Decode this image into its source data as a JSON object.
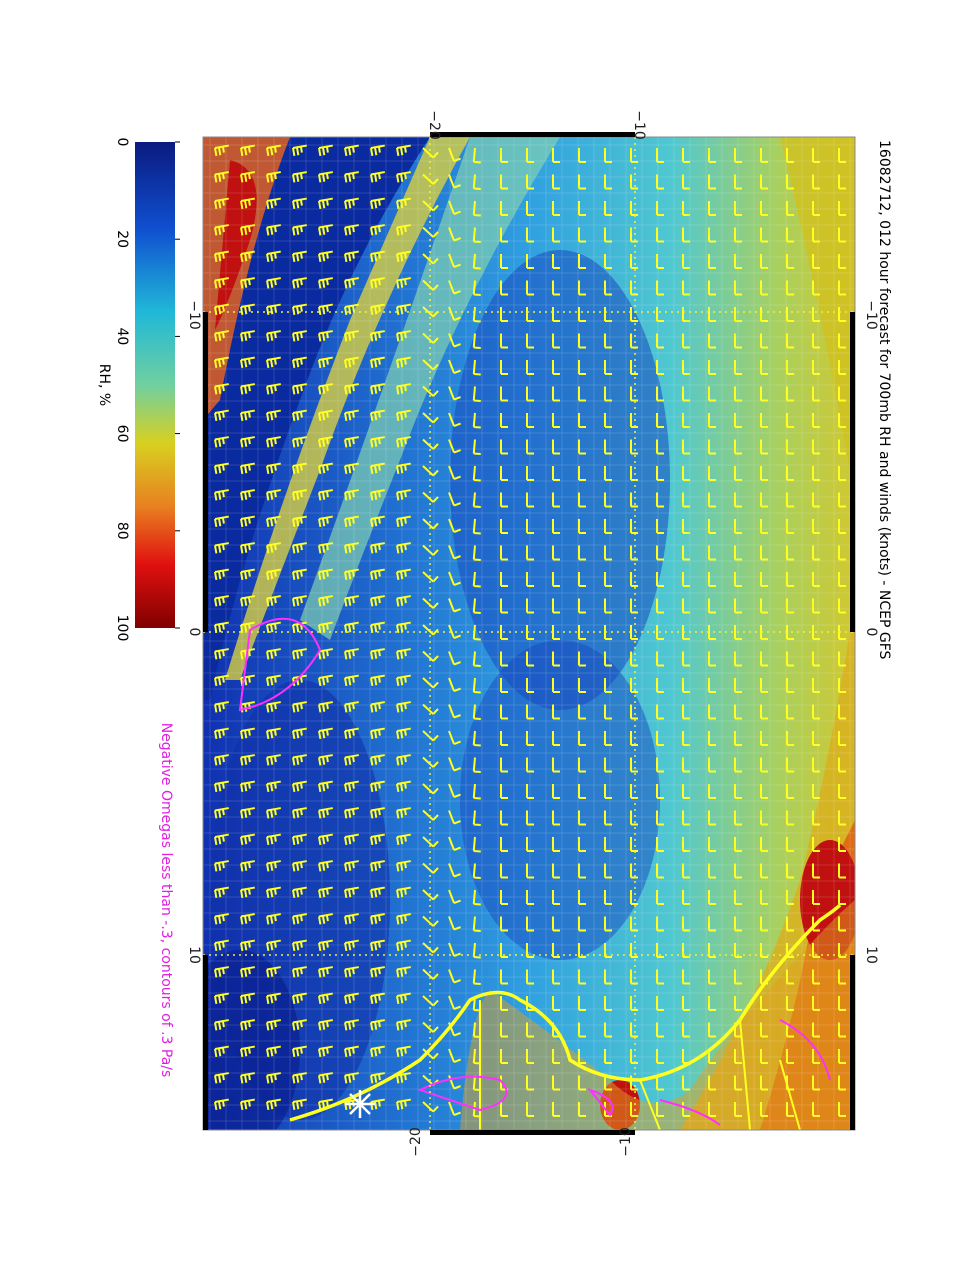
{
  "title": "16082712, 012 hour forecast for 700mb RH and winds (knots) - NCEP GFS",
  "subtitle": "Negative Omegas less than -.3, contours of .3 Pa/s",
  "colorbar": {
    "label": "RH, %",
    "range": [
      0,
      100
    ],
    "ticks": [
      0,
      20,
      40,
      60,
      80,
      100
    ]
  },
  "map_labels": {
    "top": [
      "−20",
      "−10"
    ],
    "left": [
      "−10",
      "0",
      "10"
    ],
    "right": [
      "−10",
      "0",
      "10"
    ],
    "bottom": [
      "−20",
      "−10"
    ]
  }
}
